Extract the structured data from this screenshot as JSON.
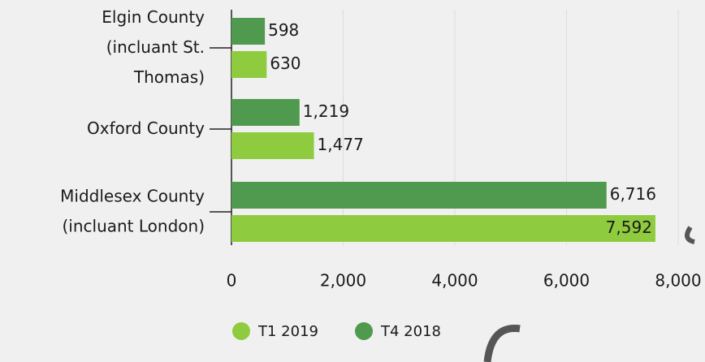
{
  "chart_data": {
    "type": "hbar",
    "categories": [
      "Elgin County\n(incluant St.\nThomas)",
      "Oxford County",
      "Middlesex County\n(incluant London)"
    ],
    "series": [
      {
        "name": "T4 2018",
        "color": "#4f9a4f",
        "values": [
          598,
          1219,
          6716
        ],
        "value_labels": [
          "598",
          "1,219",
          "6,716"
        ]
      },
      {
        "name": "T1 2019",
        "color": "#8fcb3f",
        "values": [
          630,
          1477,
          7592
        ],
        "value_labels": [
          "630",
          "1,477",
          "7,592"
        ]
      }
    ],
    "legend_order": [
      1,
      0
    ],
    "xlim": [
      0,
      8000
    ],
    "xticks": [
      0,
      {
        "value": 2000,
        "label": "2,000"
      },
      {
        "value": 4000,
        "label": "4,000"
      },
      {
        "value": 6000,
        "label": "6,000"
      },
      {
        "value": 8000,
        "label": "8,000"
      }
    ],
    "grid": true
  }
}
